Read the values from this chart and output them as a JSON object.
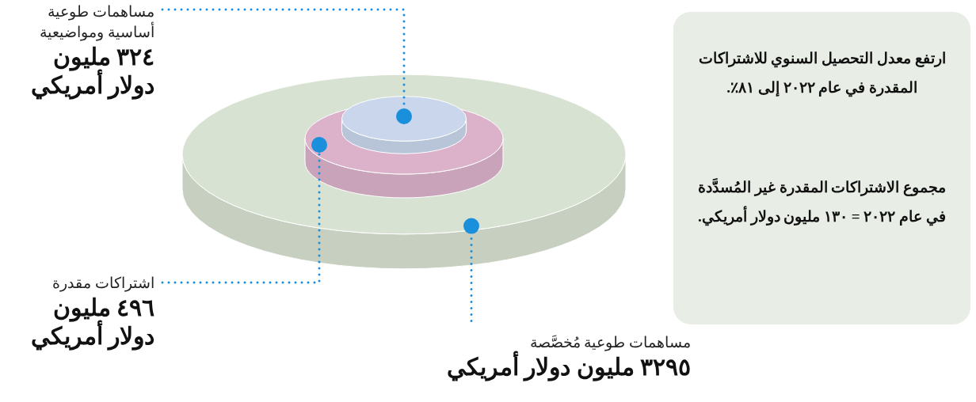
{
  "chart_data": {
    "type": "other",
    "categories": [
      "مساهمات طوعية أساسية ومواضيعية",
      "اشتراكات مقدرة",
      "مساهمات طوعية مُخصَّصة"
    ],
    "values": [
      324,
      496,
      3295
    ],
    "value_labels": [
      "٣٢٤ مليون دولار أمريكي",
      "٤٩٦ مليون دولار أمريكي",
      "٣٢٩٥ مليون دولار أمريكي"
    ],
    "colors": [
      "#c9d6ec",
      "#dcb2cb",
      "#d8e2d2"
    ],
    "annotations": [
      "ارتفع معدل التحصيل السنوي للاشتراكات المقدرة في عام ٢٠٢٢ إلى ٨١٪.",
      "مجموع الاشتراكات المقدرة غير المُسدَّدة في عام ٢٠٢٢ = ١٣٠ مليون دولار أمريكي."
    ]
  }
}
